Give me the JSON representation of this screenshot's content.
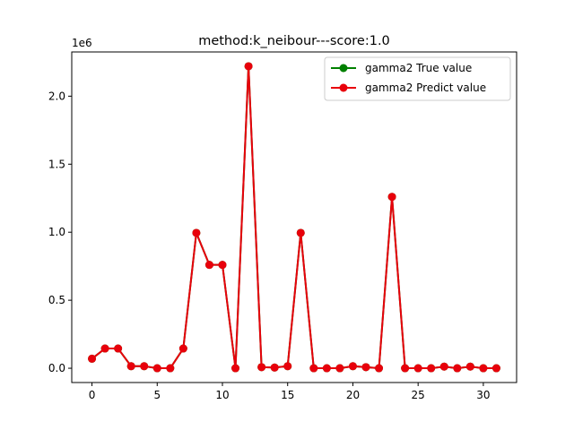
{
  "chart_data": {
    "type": "line",
    "title": "method:k_neibour---score:1.0",
    "xlabel": "",
    "ylabel": "",
    "y_scale_label": "1e6",
    "xlim": [
      -1.55,
      32.55
    ],
    "ylim": [
      -105000,
      2325000
    ],
    "x_ticks": [
      0,
      5,
      10,
      15,
      20,
      25,
      30
    ],
    "x_tick_labels": [
      "0",
      "5",
      "10",
      "15",
      "20",
      "25",
      "30"
    ],
    "y_ticks": [
      0,
      500000,
      1000000,
      1500000,
      2000000
    ],
    "y_tick_labels": [
      "0.0",
      "0.5",
      "1.0",
      "1.5",
      "2.0"
    ],
    "grid": false,
    "legend_position": "top-right",
    "x": [
      0,
      1,
      2,
      3,
      4,
      5,
      6,
      7,
      8,
      9,
      10,
      11,
      12,
      13,
      14,
      15,
      16,
      17,
      18,
      19,
      20,
      21,
      22,
      23,
      24,
      25,
      26,
      27,
      28,
      29,
      30,
      31
    ],
    "series": [
      {
        "name": "gamma2 True value",
        "color": "#008000",
        "values": [
          70000,
          145000,
          145000,
          15000,
          15000,
          0,
          0,
          145000,
          995000,
          760000,
          760000,
          0,
          2220000,
          8000,
          5000,
          15000,
          995000,
          0,
          0,
          0,
          15000,
          8000,
          0,
          1260000,
          0,
          0,
          0,
          12000,
          0,
          12000,
          0,
          0
        ]
      },
      {
        "name": "gamma2 Predict value",
        "color": "#e8000b",
        "values": [
          70000,
          145000,
          145000,
          15000,
          15000,
          0,
          0,
          145000,
          995000,
          760000,
          760000,
          0,
          2220000,
          8000,
          5000,
          15000,
          995000,
          0,
          0,
          0,
          15000,
          8000,
          0,
          1260000,
          0,
          0,
          0,
          12000,
          0,
          12000,
          0,
          0
        ]
      }
    ]
  }
}
